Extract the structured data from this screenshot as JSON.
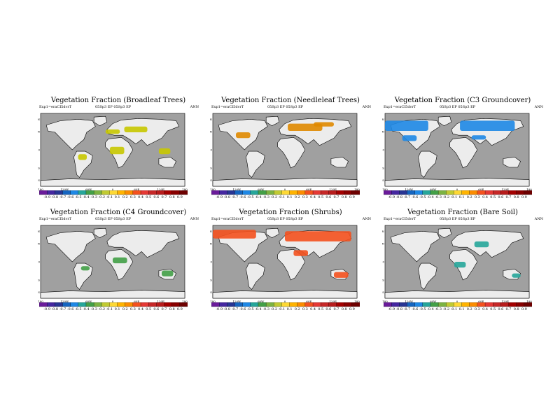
{
  "experiment_label": "Exp1=eraCI5dvrT",
  "source_label": "05Sp3 EP   05Sp3 EP",
  "season": "ANN",
  "lat_ticks": [
    "60N",
    "40N",
    "0",
    "40S",
    "60S"
  ],
  "lon_ticks": [
    "180",
    "120W",
    "60W",
    "0",
    "60E",
    "120E",
    "180"
  ],
  "colorbar_ticks": [
    "-0.9",
    "-0.8",
    "-0.7",
    "-0.6",
    "-0.5",
    "-0.4",
    "-0.3",
    "-0.2",
    "-0.1",
    "0.1",
    "0.2",
    "0.3",
    "0.4",
    "0.5",
    "0.6",
    "0.7",
    "0.8",
    "0.9"
  ],
  "colorbar_colors": [
    "#6a1b9a",
    "#4527a0",
    "#283593",
    "#1565c0",
    "#1e88e5",
    "#26a69a",
    "#43a047",
    "#7cb342",
    "#c0ca33",
    "#fdd835",
    "#ffb300",
    "#fb8c00",
    "#f4511e",
    "#e53935",
    "#c62828",
    "#b71c1c",
    "#a30000",
    "#880000",
    "#6d0000"
  ],
  "panels": [
    {
      "title": "Vegetation Fraction (Broadleaf Trees)",
      "highlight": "#c8c800"
    },
    {
      "title": "Vegetation Fraction (Needleleaf Trees)",
      "highlight": "#e08a00"
    },
    {
      "title": "Vegetation Fraction (C3 Groundcover)",
      "highlight": "#1e88e5"
    },
    {
      "title": "Vegetation Fraction (C4 Groundcover)",
      "highlight": "#43a047"
    },
    {
      "title": "Vegetation Fraction (Shrubs)",
      "highlight": "#f4511e"
    },
    {
      "title": "Vegetation Fraction (Bare Soil)",
      "highlight": "#26a69a"
    }
  ]
}
